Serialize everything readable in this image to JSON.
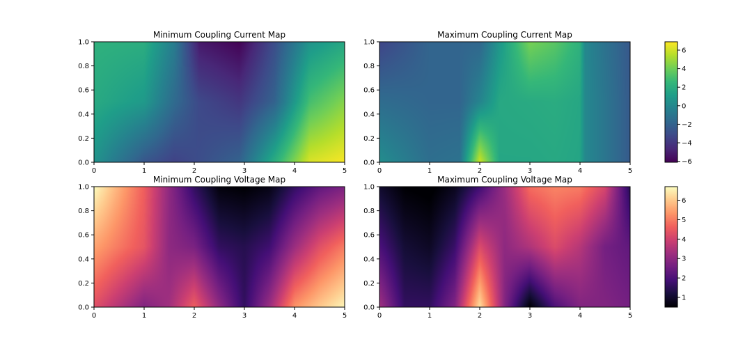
{
  "colors": {
    "viridis": [
      "#440154",
      "#482878",
      "#3e4989",
      "#31688e",
      "#26828e",
      "#1f9e89",
      "#35b779",
      "#6ece58",
      "#b5de2b",
      "#fde725"
    ],
    "magma": [
      "#000004",
      "#180f3d",
      "#440f76",
      "#721f81",
      "#9e2f7f",
      "#cd4071",
      "#f1605d",
      "#fd9668",
      "#feca8d",
      "#fcfdbf"
    ]
  },
  "chart_data": [
    {
      "type": "heatmap",
      "title": "Minimum Coupling Current Map",
      "xlabel": "",
      "ylabel": "",
      "xlim": [
        0,
        5
      ],
      "ylim": [
        0,
        1
      ],
      "x_ticks": [
        "0",
        "1",
        "2",
        "3",
        "4",
        "5"
      ],
      "y_ticks": [
        "0.0",
        "0.2",
        "0.4",
        "0.6",
        "0.8",
        "1.0"
      ],
      "grid": false,
      "colormap": "viridis",
      "clim": [
        -6.1,
        6.9
      ],
      "x": [
        0,
        1,
        1.6,
        2.1,
        2.9,
        3.6,
        4.3,
        5
      ],
      "y": [
        0,
        0.5,
        1
      ],
      "z": [
        [
          0.6,
          -2.6,
          -3.5,
          -3.0,
          -2.0,
          2.0,
          6.2,
          6.8
        ],
        [
          1.8,
          0.9,
          -1.6,
          -3.2,
          -4.0,
          -2.0,
          3.0,
          4.5
        ],
        [
          2.2,
          2.0,
          -0.6,
          -5.2,
          -6.0,
          -3.0,
          0.6,
          1.6
        ]
      ]
    },
    {
      "type": "heatmap",
      "title": "Maximum Coupling Current Map",
      "xlabel": "",
      "ylabel": "",
      "xlim": [
        0,
        5
      ],
      "ylim": [
        0,
        1
      ],
      "x_ticks": [
        "0",
        "1",
        "2",
        "3",
        "4",
        "5"
      ],
      "y_ticks": [
        "0.0",
        "0.2",
        "0.4",
        "0.6",
        "0.8",
        "1.0"
      ],
      "grid": false,
      "colormap": "viridis",
      "clim": [
        -6.1,
        6.9
      ],
      "x": [
        0,
        1,
        1.6,
        2.0,
        2.4,
        3.0,
        3.5,
        4.0,
        4.1,
        4.5,
        5
      ],
      "y": [
        0,
        0.5,
        1
      ],
      "z": [
        [
          0.3,
          -1.4,
          -1.2,
          6.0,
          1.6,
          1.6,
          1.7,
          1.5,
          0.0,
          -1.0,
          -2.4
        ],
        [
          -1.5,
          -1.9,
          -1.9,
          -0.2,
          1.7,
          1.8,
          1.9,
          1.6,
          0.0,
          -1.0,
          -2.4
        ],
        [
          -3.4,
          -1.9,
          -1.9,
          -1.8,
          0.8,
          4.2,
          3.5,
          2.2,
          0.0,
          -1.2,
          -2.5
        ]
      ],
      "colorbar_ticks": [
        6,
        4,
        2,
        0,
        -2,
        -4,
        -6
      ]
    },
    {
      "type": "heatmap",
      "title": "Minimum Coupling Voltage Map",
      "xlabel": "",
      "ylabel": "",
      "xlim": [
        0,
        5
      ],
      "ylim": [
        0,
        1
      ],
      "x_ticks": [
        "0",
        "1",
        "2",
        "3",
        "4",
        "5"
      ],
      "y_ticks": [
        "0.0",
        "0.2",
        "0.4",
        "0.6",
        "0.8",
        "1.0"
      ],
      "grid": false,
      "colormap": "magma",
      "clim": [
        0.5,
        6.7
      ],
      "x": [
        0,
        1,
        1.5,
        2.0,
        2.5,
        3.0,
        3.5,
        4.0,
        4.5,
        5
      ],
      "y": [
        0,
        0.5,
        1
      ],
      "z": [
        [
          4.3,
          2.8,
          3.3,
          4.6,
          3.0,
          1.6,
          3.2,
          5.3,
          6.0,
          6.6
        ],
        [
          5.5,
          4.4,
          3.0,
          2.7,
          1.6,
          1.4,
          1.8,
          3.2,
          4.3,
          5.0
        ],
        [
          6.7,
          4.6,
          3.0,
          1.6,
          0.6,
          0.5,
          0.7,
          1.6,
          2.3,
          2.7
        ]
      ]
    },
    {
      "type": "heatmap",
      "title": "Maximum Coupling Voltage Map",
      "xlabel": "",
      "ylabel": "",
      "xlim": [
        0,
        5
      ],
      "ylim": [
        0,
        1
      ],
      "x_ticks": [
        "0",
        "1",
        "2",
        "3",
        "4",
        "5"
      ],
      "y_ticks": [
        "0.0",
        "0.2",
        "0.4",
        "0.6",
        "0.8",
        "1.0"
      ],
      "grid": false,
      "colormap": "magma",
      "clim": [
        0.5,
        6.7
      ],
      "x": [
        0,
        0.5,
        1,
        1.5,
        2.0,
        2.5,
        3.0,
        3.5,
        4.0,
        4.5,
        5
      ],
      "y": [
        0,
        0.5,
        1
      ],
      "z": [
        [
          3.3,
          1.6,
          1.6,
          2.8,
          6.3,
          2.8,
          0.5,
          2.0,
          2.8,
          2.8,
          2.6
        ],
        [
          2.0,
          1.1,
          0.9,
          1.7,
          4.2,
          3.0,
          3.5,
          4.2,
          3.6,
          2.6,
          2.3
        ],
        [
          1.0,
          0.5,
          0.4,
          0.8,
          1.8,
          3.2,
          4.8,
          5.1,
          5.0,
          4.1,
          1.4
        ]
      ],
      "colorbar_ticks": [
        6,
        5,
        4,
        3,
        2,
        1
      ]
    }
  ]
}
